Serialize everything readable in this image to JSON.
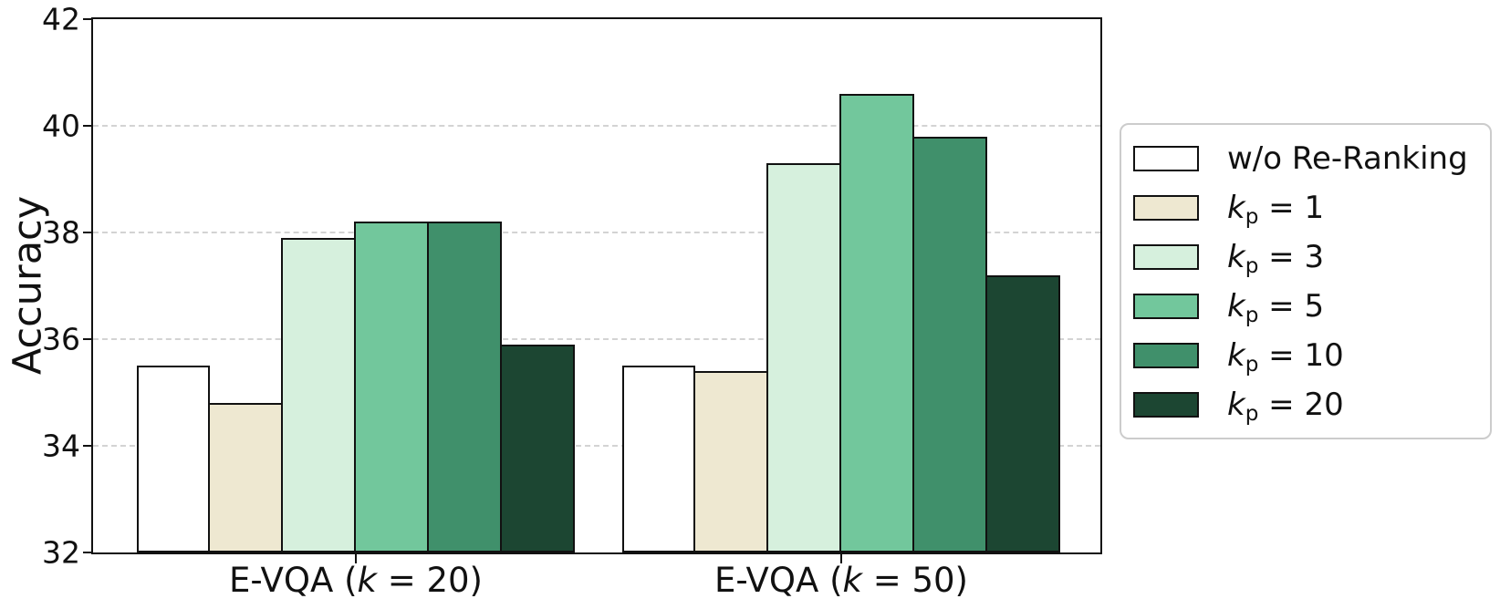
{
  "figure": {
    "ylabel": "Accuracy",
    "background_color": "#ffffff",
    "spine_color": "#111111",
    "gridline_color": "#d3d3d3"
  },
  "chart_data": {
    "type": "bar",
    "title": "",
    "xlabel": "",
    "ylabel": "Accuracy",
    "ylim": [
      32,
      42
    ],
    "yticks": [
      32,
      34,
      36,
      38,
      40,
      42
    ],
    "grid": "horizontal-dashed",
    "legend_position": "outside-right",
    "bar_edge_color": "#111111",
    "categories": [
      "E-VQA (k = 20)",
      "E-VQA (k = 50)"
    ],
    "categories_rich": [
      {
        "id": "evqa-k20",
        "pre": "E-VQA (",
        "k": "k",
        "post": " = 20)"
      },
      {
        "id": "evqa-k50",
        "pre": "E-VQA (",
        "k": "k",
        "post": " = 50)"
      }
    ],
    "series": [
      {
        "id": "wo-reranking",
        "name": "w/o Re-Ranking",
        "color": "#ffffff",
        "values": [
          35.5,
          35.5
        ],
        "label_rich": {
          "plain": "w/o Re-Ranking"
        }
      },
      {
        "id": "kp1",
        "name": "k_p = 1",
        "color": "#eee8d1",
        "values": [
          34.8,
          35.4
        ],
        "label_rich": {
          "k": "k",
          "sub": "p",
          "rest": " = 1"
        }
      },
      {
        "id": "kp3",
        "name": "k_p = 3",
        "color": "#d6f0dd",
        "values": [
          37.9,
          39.3
        ],
        "label_rich": {
          "k": "k",
          "sub": "p",
          "rest": " = 3"
        }
      },
      {
        "id": "kp5",
        "name": "k_p = 5",
        "color": "#72c79c",
        "values": [
          38.2,
          40.6
        ],
        "label_rich": {
          "k": "k",
          "sub": "p",
          "rest": " = 5"
        }
      },
      {
        "id": "kp10",
        "name": "k_p = 10",
        "color": "#40906b",
        "values": [
          38.2,
          39.8
        ],
        "label_rich": {
          "k": "k",
          "sub": "p",
          "rest": " = 10"
        }
      },
      {
        "id": "kp20",
        "name": "k_p = 20",
        "color": "#1c4632",
        "values": [
          35.9,
          37.2
        ],
        "label_rich": {
          "k": "k",
          "sub": "p",
          "rest": " = 20"
        }
      }
    ]
  }
}
